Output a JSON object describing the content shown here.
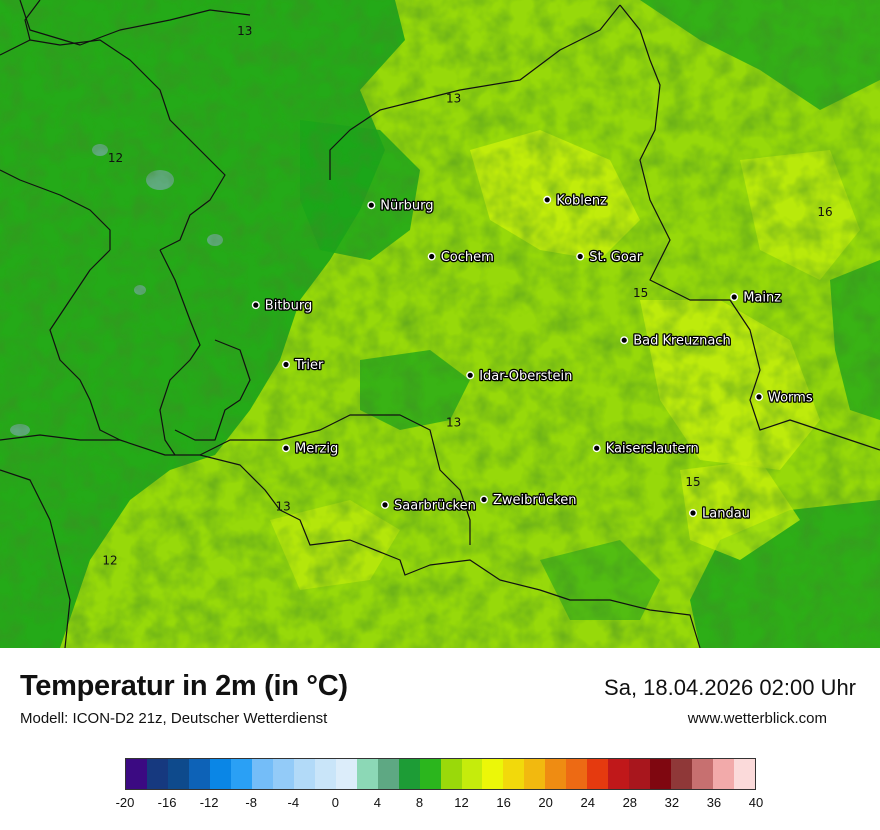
{
  "map": {
    "fill_colors": {
      "cool": "#1aa61a",
      "mid": "#97d90a",
      "warm": "#c8ef0c",
      "cold_spot": "#66aa88"
    },
    "cities": [
      {
        "name": "Nürburg",
        "lon": 6.95,
        "lat": 50.34
      },
      {
        "name": "Koblenz",
        "lon": 7.59,
        "lat": 50.36
      },
      {
        "name": "Cochem",
        "lon": 7.17,
        "lat": 50.15
      },
      {
        "name": "St. Goar",
        "lon": 7.71,
        "lat": 50.15
      },
      {
        "name": "Bitburg",
        "lon": 6.53,
        "lat": 49.97
      },
      {
        "name": "Mainz",
        "lon": 8.27,
        "lat": 50.0
      },
      {
        "name": "Bad Kreuznach",
        "lon": 7.87,
        "lat": 49.84
      },
      {
        "name": "Trier",
        "lon": 6.64,
        "lat": 49.75
      },
      {
        "name": "Idar-Oberstein",
        "lon": 7.31,
        "lat": 49.71
      },
      {
        "name": "Worms",
        "lon": 8.36,
        "lat": 49.63
      },
      {
        "name": "Merzig",
        "lon": 6.64,
        "lat": 49.44
      },
      {
        "name": "Kaiserslautern",
        "lon": 7.77,
        "lat": 49.44
      },
      {
        "name": "Saarbrücken",
        "lon": 7.0,
        "lat": 49.23
      },
      {
        "name": "Zweibrücken",
        "lon": 7.36,
        "lat": 49.25
      },
      {
        "name": "Landau",
        "lon": 8.12,
        "lat": 49.2
      }
    ],
    "isolines": [
      {
        "label": "13",
        "lon": 6.49,
        "lat": 50.97
      },
      {
        "label": "13",
        "lon": 7.25,
        "lat": 50.72
      },
      {
        "label": "12",
        "lon": 6.02,
        "lat": 50.5
      },
      {
        "label": "16",
        "lon": 8.6,
        "lat": 50.3
      },
      {
        "label": "15",
        "lon": 7.93,
        "lat": 50.0
      },
      {
        "label": "13",
        "lon": 7.25,
        "lat": 49.52
      },
      {
        "label": "15",
        "lon": 8.12,
        "lat": 49.3
      },
      {
        "label": "13",
        "lon": 6.63,
        "lat": 49.21
      },
      {
        "label": "12",
        "lon": 6.0,
        "lat": 49.01
      }
    ]
  },
  "header": {
    "title": "Temperatur in 2m (in °C)",
    "model": "Modell: ICON-D2 21z, Deutscher Wetterdienst",
    "datetime": "Sa, 18.04.2026 02:00 Uhr",
    "website": "www.wetterblick.com"
  },
  "legend": {
    "colors": [
      "#3b0a82",
      "#16397f",
      "#0e4a8c",
      "#0d62b7",
      "#0a86e6",
      "#2aa0f5",
      "#74bdf8",
      "#93cbf8",
      "#b2daf8",
      "#c9e5f9",
      "#dcedfa",
      "#8cd8b6",
      "#5ea883",
      "#1d9c36",
      "#2bb61d",
      "#9ad90a",
      "#c5ec0c",
      "#ecf708",
      "#f2d90b",
      "#f2b90f",
      "#ef8c12",
      "#ed6a14",
      "#e53a0f",
      "#c0181a",
      "#a8161d",
      "#7f0710",
      "#8f3838",
      "#c77070",
      "#f2aaaa",
      "#fbdada"
    ],
    "ticks": [
      "-20",
      "-16",
      "-12",
      "-8",
      "-4",
      "0",
      "4",
      "8",
      "12",
      "16",
      "20",
      "24",
      "28",
      "32",
      "36",
      "40"
    ]
  }
}
